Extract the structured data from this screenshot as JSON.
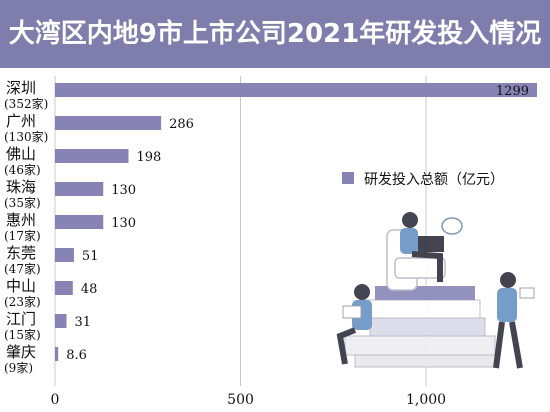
{
  "header": {
    "title": "大湾区内地9市上市公司2021年研发投入情况"
  },
  "chart_data": {
    "type": "bar",
    "orientation": "horizontal",
    "title": "大湾区内地9市上市公司2021年研发投入情况",
    "categories": [
      "深圳",
      "广州",
      "佛山",
      "珠海",
      "惠州",
      "东莞",
      "中山",
      "江门",
      "肇庆"
    ],
    "company_counts": [
      "(352家)",
      "(130家)",
      "(46家)",
      "(35家)",
      "(17家)",
      "(47家)",
      "(23家)",
      "(15家)",
      "(9家)"
    ],
    "series": [
      {
        "name": "研发投入总额（亿元）",
        "values": [
          1299,
          286,
          198,
          130,
          130,
          51,
          48,
          31,
          8.6
        ]
      }
    ],
    "value_labels": [
      "1299",
      "286",
      "198",
      "130",
      "130",
      "51",
      "48",
      "31",
      "8.6"
    ],
    "xlim": [
      0,
      1299
    ],
    "xticks": [
      0,
      500,
      1000
    ],
    "xtick_labels": [
      "0",
      "500",
      "1,000"
    ],
    "grid": "vertical",
    "legend_position": "right",
    "colors": {
      "bar": "#8784b5",
      "header": "#7f7dab",
      "grid": "#c8c8c8"
    }
  }
}
